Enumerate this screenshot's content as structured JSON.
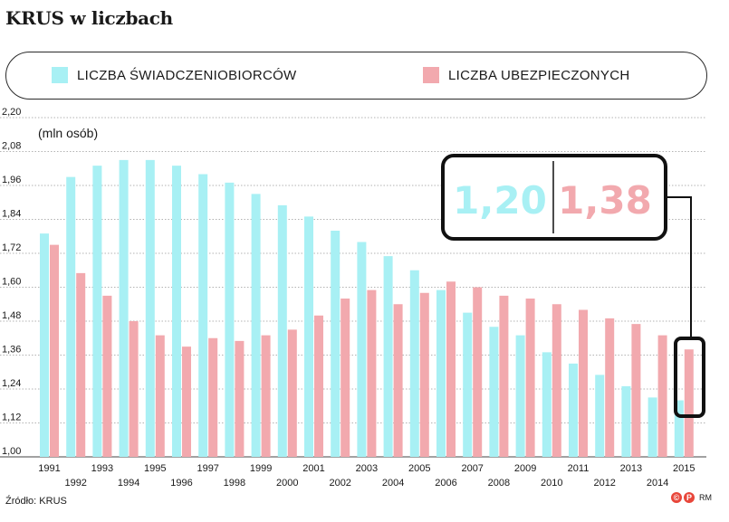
{
  "title": "KRUS w liczbach",
  "legend": [
    {
      "label": "LICZBA ŚWIADCZENIOBIORCÓW",
      "color": "#a8f0f4"
    },
    {
      "label": "LICZBA UBEZPIECZONYCH",
      "color": "#f2a9ae"
    }
  ],
  "unit": "(mln osób)",
  "source": "Źródło: KRUS",
  "credit": "RM",
  "callout": {
    "value_a": "1,20",
    "value_b": "1,38",
    "color_a": "#a8f0f4",
    "color_b": "#f2a9ae"
  },
  "chart_data": {
    "type": "bar",
    "categories": [
      "1991",
      "1992",
      "1993",
      "1994",
      "1995",
      "1996",
      "1997",
      "1998",
      "1999",
      "2000",
      "2001",
      "2002",
      "2003",
      "2004",
      "2005",
      "2006",
      "2007",
      "2008",
      "2009",
      "2010",
      "2011",
      "2012",
      "2013",
      "2014",
      "2015"
    ],
    "series": [
      {
        "name": "LICZBA ŚWIADCZENIOBIORCÓW",
        "color": "#a8f0f4",
        "values": [
          1.79,
          1.99,
          2.03,
          2.05,
          2.05,
          2.03,
          2.0,
          1.97,
          1.93,
          1.89,
          1.85,
          1.8,
          1.76,
          1.71,
          1.66,
          1.59,
          1.51,
          1.46,
          1.43,
          1.37,
          1.33,
          1.29,
          1.25,
          1.21,
          1.2
        ]
      },
      {
        "name": "LICZBA UBEZPIECZONYCH",
        "color": "#f2a9ae",
        "values": [
          1.75,
          1.65,
          1.57,
          1.48,
          1.43,
          1.39,
          1.42,
          1.41,
          1.43,
          1.45,
          1.5,
          1.56,
          1.59,
          1.54,
          1.58,
          1.62,
          1.6,
          1.57,
          1.56,
          1.54,
          1.52,
          1.49,
          1.47,
          1.43,
          1.38
        ]
      }
    ],
    "yticks": [
      "1,00",
      "1,12",
      "1,24",
      "1,36",
      "1,48",
      "1,60",
      "1,72",
      "1,84",
      "1,96",
      "2,08",
      "2,20"
    ],
    "ylim": [
      1.0,
      2.2
    ],
    "grid": true
  }
}
